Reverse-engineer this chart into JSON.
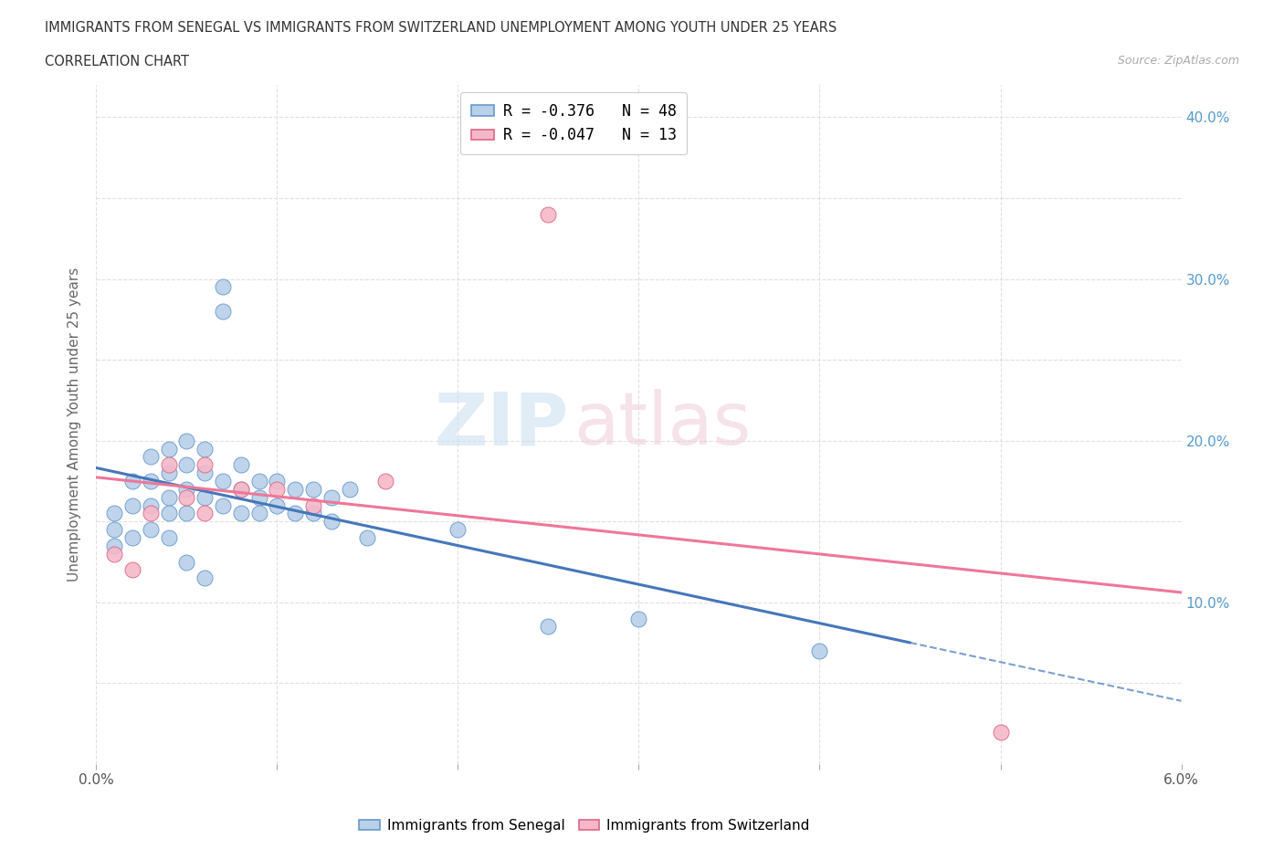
{
  "title_line1": "IMMIGRANTS FROM SENEGAL VS IMMIGRANTS FROM SWITZERLAND UNEMPLOYMENT AMONG YOUTH UNDER 25 YEARS",
  "title_line2": "CORRELATION CHART",
  "source_text": "Source: ZipAtlas.com",
  "ylabel": "Unemployment Among Youth under 25 years",
  "xlim": [
    0.0,
    0.06
  ],
  "ylim": [
    0.0,
    0.42
  ],
  "senegal_R": -0.376,
  "senegal_N": 48,
  "switzerland_R": -0.047,
  "switzerland_N": 13,
  "senegal_color": "#b8d0e8",
  "switzerland_color": "#f5b8c8",
  "senegal_edge_color": "#6699cc",
  "switzerland_edge_color": "#dd6688",
  "senegal_line_color": "#4477bb",
  "switzerland_line_color": "#ee7799",
  "grid_color": "#e0e0e0",
  "senegal_x": [
    0.001,
    0.001,
    0.001,
    0.002,
    0.002,
    0.002,
    0.003,
    0.003,
    0.003,
    0.003,
    0.004,
    0.004,
    0.004,
    0.004,
    0.004,
    0.005,
    0.005,
    0.005,
    0.005,
    0.005,
    0.006,
    0.006,
    0.006,
    0.006,
    0.007,
    0.007,
    0.007,
    0.007,
    0.008,
    0.008,
    0.008,
    0.009,
    0.009,
    0.009,
    0.01,
    0.01,
    0.011,
    0.011,
    0.012,
    0.012,
    0.013,
    0.013,
    0.014,
    0.015,
    0.02,
    0.025,
    0.03,
    0.04
  ],
  "senegal_y": [
    0.155,
    0.145,
    0.135,
    0.175,
    0.16,
    0.14,
    0.19,
    0.175,
    0.16,
    0.145,
    0.195,
    0.18,
    0.165,
    0.155,
    0.14,
    0.2,
    0.185,
    0.17,
    0.155,
    0.125,
    0.195,
    0.18,
    0.165,
    0.115,
    0.295,
    0.28,
    0.175,
    0.16,
    0.185,
    0.17,
    0.155,
    0.175,
    0.165,
    0.155,
    0.175,
    0.16,
    0.17,
    0.155,
    0.17,
    0.155,
    0.165,
    0.15,
    0.17,
    0.14,
    0.145,
    0.085,
    0.09,
    0.07
  ],
  "switzerland_x": [
    0.001,
    0.002,
    0.003,
    0.004,
    0.005,
    0.006,
    0.006,
    0.008,
    0.01,
    0.012,
    0.016,
    0.025,
    0.05
  ],
  "switzerland_y": [
    0.13,
    0.12,
    0.155,
    0.185,
    0.165,
    0.185,
    0.155,
    0.17,
    0.17,
    0.16,
    0.175,
    0.34,
    0.02
  ],
  "solid_line_end": 0.045,
  "x_tick_positions": [
    0.0,
    0.01,
    0.02,
    0.03,
    0.04,
    0.05,
    0.06
  ],
  "y_tick_positions": [
    0.0,
    0.05,
    0.1,
    0.15,
    0.2,
    0.25,
    0.3,
    0.35,
    0.4
  ],
  "right_y_labels": [
    "",
    "",
    "10.0%",
    "",
    "20.0%",
    "",
    "30.0%",
    "",
    "40.0%"
  ]
}
